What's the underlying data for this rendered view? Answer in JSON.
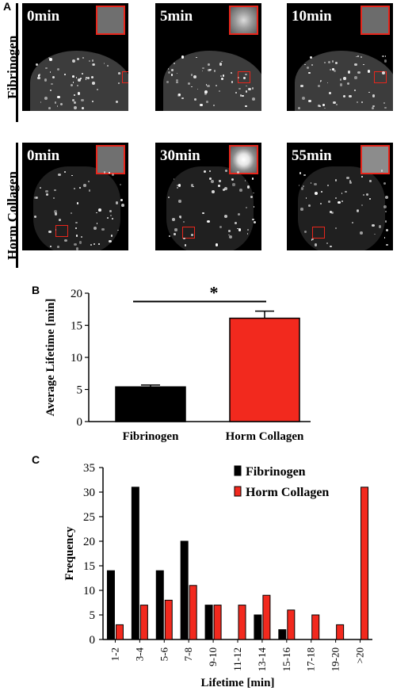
{
  "panel_a": {
    "letter": "A",
    "rows": [
      {
        "label": "Fibrinogen",
        "tiles": [
          "0min",
          "5min",
          "10min"
        ]
      },
      {
        "label": "Horm Collagen",
        "tiles": [
          "0min",
          "30min",
          "55min"
        ]
      }
    ]
  },
  "chart_data": [
    {
      "panel": "B",
      "type": "bar",
      "categories": [
        "Fibrinogen",
        "Horm Collagen"
      ],
      "values": [
        5.4,
        16.1
      ],
      "errors": [
        0.3,
        1.1
      ],
      "colors": [
        "#000000",
        "#f2291e"
      ],
      "ylabel": "Average Lifetime [min]",
      "ylim": [
        0,
        20
      ],
      "yticks": [
        0,
        5,
        10,
        15,
        20
      ],
      "significance": "*"
    },
    {
      "panel": "C",
      "type": "bar",
      "categories": [
        "1-2",
        "3-4",
        "5-6",
        "7-8",
        "9-10",
        "11-12",
        "13-14",
        "15-16",
        "17-18",
        "19-20",
        ">20"
      ],
      "series": [
        {
          "name": "Fibrinogen",
          "color": "#000000",
          "values": [
            14,
            31,
            14,
            20,
            7,
            0,
            5,
            2,
            0,
            0,
            0
          ]
        },
        {
          "name": "Horm Collagen",
          "color": "#f2291e",
          "values": [
            3,
            7,
            8,
            11,
            7,
            7,
            9,
            6,
            5,
            3,
            31
          ]
        }
      ],
      "xlabel": "Lifetime [min]",
      "ylabel": "Frequency",
      "ylim": [
        0,
        35
      ],
      "yticks": [
        0,
        5,
        10,
        15,
        20,
        25,
        30,
        35
      ],
      "legend": "top-right"
    }
  ]
}
